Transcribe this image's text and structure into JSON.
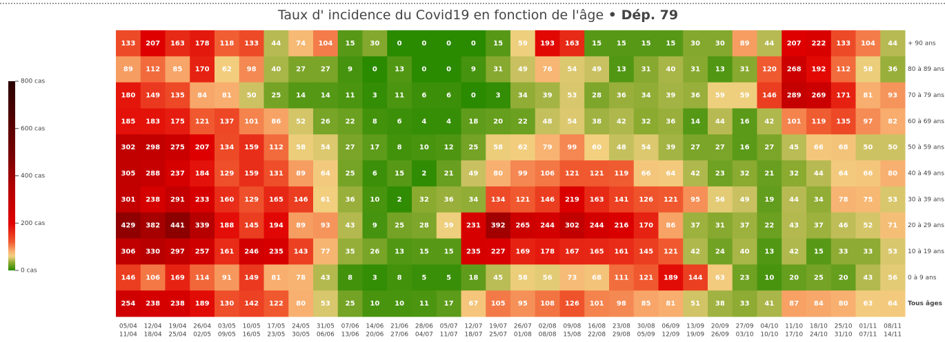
{
  "chart_data": {
    "type": "heatmap",
    "title": "Taux d' incidence du Covid19 en fonction de l'âge",
    "title_bold": "Dép. 79",
    "categories": [
      "05/04",
      "12/04",
      "19/04",
      "26/04",
      "03/05",
      "10/05",
      "17/05",
      "24/05",
      "31/05",
      "07/06",
      "14/06",
      "21/06",
      "28/06",
      "05/07",
      "12/07",
      "19/07",
      "26/07",
      "02/08",
      "09/08",
      "16/08",
      "23/08",
      "30/08",
      "06/09",
      "13/09",
      "20/09",
      "27/09",
      "04/10",
      "11/10",
      "18/10",
      "25/10",
      "01/11",
      "08/11"
    ],
    "categories_end": [
      "11/04",
      "18/04",
      "25/04",
      "02/05",
      "09/05",
      "16/05",
      "23/05",
      "30/05",
      "06/06",
      "13/06",
      "20/06",
      "27/06",
      "04/07",
      "11/07",
      "18/07",
      "25/07",
      "01/08",
      "08/08",
      "15/08",
      "22/08",
      "29/08",
      "05/09",
      "12/09",
      "19/09",
      "26/09",
      "03/10",
      "10/10",
      "17/10",
      "24/10",
      "31/10",
      "07/11",
      "14/11"
    ],
    "series": [
      {
        "name": "+ 90 ans",
        "values": [
          133,
          207,
          163,
          178,
          118,
          133,
          44,
          74,
          104,
          15,
          30,
          0,
          0,
          0,
          0,
          15,
          59,
          193,
          163,
          15,
          15,
          15,
          15,
          30,
          30,
          89,
          44,
          207,
          222,
          133,
          104,
          44
        ]
      },
      {
        "name": "80 à 89 ans",
        "values": [
          89,
          112,
          85,
          170,
          62,
          98,
          40,
          27,
          27,
          9,
          0,
          13,
          0,
          0,
          9,
          31,
          49,
          76,
          54,
          49,
          13,
          31,
          40,
          31,
          13,
          31,
          120,
          268,
          192,
          112,
          58,
          36
        ]
      },
      {
        "name": "70 à 79 ans",
        "values": [
          180,
          149,
          135,
          84,
          81,
          50,
          25,
          14,
          14,
          11,
          3,
          11,
          6,
          6,
          0,
          3,
          34,
          39,
          53,
          28,
          36,
          34,
          39,
          36,
          59,
          59,
          146,
          289,
          269,
          171,
          81,
          93
        ]
      },
      {
        "name": "60 à 69 ans",
        "values": [
          185,
          183,
          175,
          121,
          137,
          101,
          86,
          52,
          26,
          22,
          8,
          6,
          4,
          4,
          18,
          20,
          22,
          48,
          54,
          38,
          42,
          32,
          36,
          14,
          44,
          16,
          42,
          101,
          119,
          135,
          97,
          82
        ]
      },
      {
        "name": "50 à 59 ans",
        "values": [
          302,
          298,
          275,
          207,
          134,
          159,
          112,
          58,
          54,
          27,
          17,
          8,
          10,
          12,
          25,
          58,
          62,
          79,
          99,
          60,
          48,
          54,
          39,
          27,
          27,
          16,
          27,
          45,
          66,
          68,
          50,
          50
        ]
      },
      {
        "name": "40 à 49 ans",
        "values": [
          305,
          288,
          237,
          184,
          129,
          159,
          131,
          89,
          64,
          25,
          6,
          15,
          2,
          21,
          49,
          80,
          99,
          106,
          121,
          121,
          119,
          66,
          64,
          42,
          23,
          32,
          21,
          32,
          44,
          64,
          66,
          80
        ]
      },
      {
        "name": "30 à 39 ans",
        "values": [
          301,
          238,
          291,
          233,
          160,
          129,
          165,
          146,
          61,
          36,
          10,
          2,
          32,
          36,
          34,
          134,
          121,
          146,
          219,
          163,
          141,
          126,
          121,
          95,
          56,
          49,
          19,
          44,
          34,
          78,
          75,
          53
        ]
      },
      {
        "name": "20 à 29 ans",
        "values": [
          429,
          382,
          441,
          339,
          188,
          145,
          194,
          89,
          93,
          43,
          9,
          25,
          28,
          59,
          231,
          392,
          265,
          244,
          302,
          244,
          216,
          170,
          86,
          37,
          31,
          37,
          22,
          43,
          37,
          46,
          52,
          71
        ]
      },
      {
        "name": "10 à 19 ans",
        "values": [
          306,
          330,
          297,
          257,
          161,
          246,
          235,
          143,
          77,
          35,
          26,
          13,
          15,
          15,
          235,
          227,
          169,
          178,
          167,
          165,
          161,
          145,
          121,
          42,
          24,
          40,
          13,
          42,
          15,
          33,
          33,
          53
        ]
      },
      {
        "name": "0 à 9 ans",
        "values": [
          146,
          106,
          169,
          114,
          91,
          149,
          81,
          78,
          43,
          8,
          3,
          8,
          5,
          5,
          18,
          45,
          58,
          56,
          73,
          68,
          111,
          121,
          189,
          144,
          63,
          23,
          10,
          20,
          25,
          20,
          43,
          56
        ]
      },
      {
        "name": "Tous âges",
        "values": [
          254,
          238,
          238,
          189,
          130,
          142,
          122,
          80,
          53,
          25,
          10,
          10,
          11,
          17,
          67,
          105,
          95,
          108,
          126,
          101,
          98,
          85,
          81,
          51,
          38,
          33,
          41,
          87,
          84,
          80,
          63,
          64
        ]
      }
    ],
    "zlim": [
      0,
      800
    ],
    "zticks": [
      {
        "value": 0,
        "label": "0 cas"
      },
      {
        "value": 200,
        "label": "200 cas"
      },
      {
        "value": 400,
        "label": "400 cas"
      },
      {
        "value": 600,
        "label": "600 cas"
      },
      {
        "value": 800,
        "label": "800 cas"
      }
    ],
    "colorscale": [
      [
        0,
        "#2a8a00"
      ],
      [
        0.04,
        "#8aaa30"
      ],
      [
        0.075,
        "#f2d080"
      ],
      [
        0.1,
        "#f8b070"
      ],
      [
        0.15,
        "#f05a30"
      ],
      [
        0.25,
        "#e00000"
      ],
      [
        0.45,
        "#b00000"
      ],
      [
        0.6,
        "#7a0000"
      ],
      [
        1,
        "#2a0000"
      ]
    ]
  }
}
